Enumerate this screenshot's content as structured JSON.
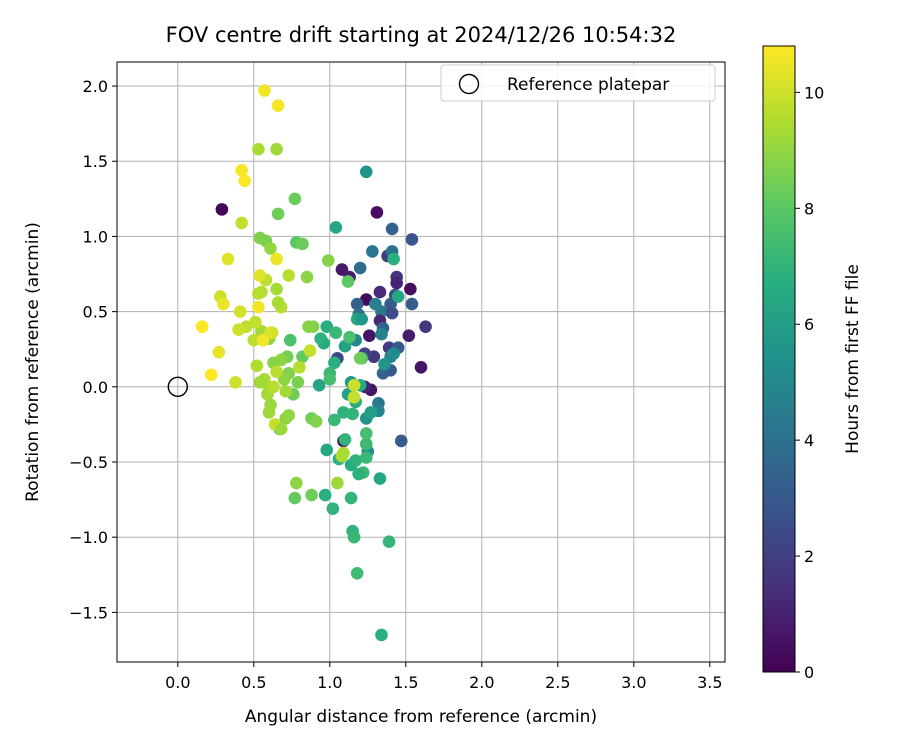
{
  "chart_data": {
    "type": "scatter",
    "title": "FOV centre drift starting at 2024/12/26 10:54:32",
    "xlabel": "Angular distance from reference (arcmin)",
    "ylabel": "Rotation from reference (arcmin)",
    "xlim": [
      -0.4,
      3.6
    ],
    "ylim": [
      -1.83,
      2.16
    ],
    "xticks": [
      0.0,
      0.5,
      1.0,
      1.5,
      2.0,
      2.5,
      3.0,
      3.5
    ],
    "xtick_labels": [
      "0.0",
      "0.5",
      "1.0",
      "1.5",
      "2.0",
      "2.5",
      "3.0",
      "3.5"
    ],
    "yticks": [
      -1.5,
      -1.0,
      -0.5,
      0.0,
      0.5,
      1.0,
      1.5,
      2.0
    ],
    "ytick_labels": [
      "−1.5",
      "−1.0",
      "−0.5",
      "0.0",
      "0.5",
      "1.0",
      "1.5",
      "2.0"
    ],
    "grid": true,
    "legend": {
      "position": "top-right",
      "entries": [
        "Reference platepar"
      ]
    },
    "reference_point": {
      "x": 0.0,
      "y": 0.0,
      "label": "Reference platepar"
    },
    "colorbar": {
      "label": "Hours from first FF file",
      "colormap": "viridis",
      "range": [
        0,
        10.8
      ],
      "ticks": [
        0,
        2,
        4,
        6,
        8,
        10
      ],
      "tick_labels": [
        "0",
        "2",
        "4",
        "6",
        "8",
        "10"
      ]
    },
    "points": [
      [
        0.29,
        1.18,
        0.1
      ],
      [
        1.31,
        1.16,
        0.4
      ],
      [
        1.38,
        0.87,
        1.9
      ],
      [
        1.54,
        0.98,
        2.9
      ],
      [
        1.41,
        1.05,
        3.4
      ],
      [
        1.13,
        0.73,
        0.9
      ],
      [
        1.08,
        0.78,
        0.7
      ],
      [
        1.2,
        0.79,
        3.8
      ],
      [
        1.41,
        0.9,
        4.1
      ],
      [
        1.28,
        0.9,
        4.2
      ],
      [
        1.33,
        0.63,
        1.3
      ],
      [
        1.44,
        0.73,
        1.6
      ],
      [
        1.53,
        0.65,
        0.4
      ],
      [
        1.44,
        0.69,
        1.1
      ],
      [
        1.43,
        0.61,
        2.5
      ],
      [
        1.4,
        0.55,
        3.1
      ],
      [
        1.34,
        0.5,
        4.4
      ],
      [
        1.54,
        0.55,
        3.2
      ],
      [
        1.63,
        0.4,
        1.7
      ],
      [
        1.52,
        0.34,
        0.9
      ],
      [
        1.24,
        0.58,
        0.3
      ],
      [
        1.18,
        0.55,
        3.3
      ],
      [
        1.26,
        0.34,
        0.6
      ],
      [
        1.33,
        0.44,
        1.2
      ],
      [
        1.35,
        0.39,
        3.4
      ],
      [
        1.41,
        0.49,
        2.6
      ],
      [
        1.39,
        0.26,
        1.9
      ],
      [
        1.45,
        0.26,
        3.0
      ],
      [
        1.6,
        0.13,
        0.6
      ],
      [
        1.35,
        0.09,
        3.5
      ],
      [
        1.4,
        0.11,
        3.0
      ],
      [
        1.29,
        0.2,
        1.8
      ],
      [
        1.23,
        0.22,
        2.2
      ],
      [
        1.19,
        0.48,
        4.0
      ],
      [
        1.17,
        0.31,
        5.0
      ],
      [
        1.05,
        0.19,
        2.3
      ],
      [
        1.27,
        -0.02,
        0.6
      ],
      [
        1.23,
        0.0,
        1.0
      ],
      [
        1.47,
        -0.36,
        3.1
      ],
      [
        1.09,
        -0.36,
        0.6
      ],
      [
        1.24,
        1.43,
        5.6
      ],
      [
        1.04,
        1.06,
        6.4
      ],
      [
        1.42,
        0.85,
        6.8
      ],
      [
        1.45,
        0.6,
        6.4
      ],
      [
        1.18,
        0.45,
        6.5
      ],
      [
        1.3,
        0.55,
        4.6
      ],
      [
        1.21,
        0.45,
        5.7
      ],
      [
        1.34,
        0.35,
        4.8
      ],
      [
        1.4,
        0.2,
        4.7
      ],
      [
        1.42,
        0.22,
        5.2
      ],
      [
        1.36,
        0.15,
        5.6
      ],
      [
        1.32,
        -0.11,
        4.3
      ],
      [
        1.32,
        -0.16,
        4.8
      ],
      [
        1.24,
        -0.21,
        5.5
      ],
      [
        1.27,
        -0.17,
        6.0
      ],
      [
        1.25,
        -0.43,
        5.3
      ],
      [
        1.2,
        0.01,
        6.5
      ],
      [
        1.14,
        0.03,
        5.8
      ],
      [
        1.12,
        -0.05,
        6.2
      ],
      [
        1.17,
        -0.1,
        6.7
      ],
      [
        1.09,
        -0.17,
        6.9
      ],
      [
        1.15,
        -0.18,
        7.0
      ],
      [
        1.03,
        -0.22,
        7.2
      ],
      [
        1.1,
        -0.35,
        7.0
      ],
      [
        1.06,
        -0.48,
        6.9
      ],
      [
        1.14,
        -0.52,
        6.7
      ],
      [
        1.17,
        -0.49,
        6.9
      ],
      [
        1.1,
        0.27,
        6.2
      ],
      [
        1.03,
        0.16,
        6.8
      ],
      [
        1.0,
        0.09,
        7.2
      ],
      [
        0.96,
        0.29,
        6.6
      ],
      [
        0.98,
        0.4,
        6.7
      ],
      [
        0.94,
        0.32,
        6.9
      ],
      [
        0.93,
        0.01,
        6.3
      ],
      [
        0.98,
        -0.42,
        6.4
      ],
      [
        1.0,
        0.05,
        7.5
      ],
      [
        1.24,
        -0.38,
        7.3
      ],
      [
        1.24,
        -0.31,
        7.5
      ],
      [
        1.24,
        -0.47,
        7.2
      ],
      [
        1.33,
        -0.61,
        6.4
      ],
      [
        1.22,
        -0.57,
        7.3
      ],
      [
        1.19,
        -0.58,
        6.9
      ],
      [
        1.14,
        -0.74,
        7.1
      ],
      [
        0.97,
        -0.72,
        6.8
      ],
      [
        1.02,
        -0.81,
        7.0
      ],
      [
        1.15,
        -0.96,
        6.9
      ],
      [
        1.16,
        -1.0,
        7.2
      ],
      [
        1.18,
        -1.24,
        7.4
      ],
      [
        1.39,
        -1.03,
        7.1
      ],
      [
        1.34,
        -1.65,
        6.8
      ],
      [
        1.13,
        0.33,
        7.6
      ],
      [
        1.21,
        0.19,
        7.4
      ],
      [
        1.04,
        0.36,
        7.2
      ],
      [
        0.74,
        0.31,
        7.7
      ],
      [
        0.78,
        0.96,
        8.0
      ],
      [
        0.77,
        1.25,
        8.3
      ],
      [
        0.66,
        1.15,
        8.4
      ],
      [
        0.54,
        0.99,
        8.6
      ],
      [
        0.58,
        0.97,
        8.6
      ],
      [
        0.82,
        0.95,
        8.3
      ],
      [
        0.99,
        0.84,
        8.8
      ],
      [
        0.85,
        0.73,
        8.9
      ],
      [
        1.12,
        0.7,
        8.1
      ],
      [
        0.89,
        0.4,
        8.7
      ],
      [
        0.86,
        0.4,
        8.8
      ],
      [
        0.82,
        0.2,
        8.2
      ],
      [
        0.72,
        0.2,
        8.5
      ],
      [
        0.73,
        0.09,
        8.7
      ],
      [
        0.68,
        0.18,
        8.9
      ],
      [
        0.63,
        0.16,
        8.8
      ],
      [
        0.7,
        0.05,
        8.9
      ],
      [
        0.79,
        0.03,
        8.6
      ],
      [
        0.76,
        -0.05,
        8.4
      ],
      [
        0.67,
        -0.28,
        7.9
      ],
      [
        0.71,
        -0.21,
        8.8
      ],
      [
        0.88,
        -0.21,
        8.4
      ],
      [
        0.91,
        -0.23,
        8.7
      ],
      [
        0.78,
        -0.64,
        8.9
      ],
      [
        0.77,
        -0.74,
        8.2
      ],
      [
        0.88,
        -0.72,
        8.4
      ],
      [
        1.2,
        0.19,
        8.4
      ],
      [
        1.08,
        -0.46,
        9.5
      ],
      [
        1.05,
        -0.64,
        9.2
      ],
      [
        1.09,
        -0.44,
        9.4
      ],
      [
        1.16,
        -0.07,
        9.8
      ],
      [
        1.16,
        0.01,
        9.9
      ],
      [
        0.6,
        0.32,
        9.0
      ],
      [
        0.55,
        0.37,
        9.3
      ],
      [
        0.68,
        0.53,
        9.6
      ],
      [
        0.62,
        0.36,
        9.8
      ],
      [
        0.65,
        0.1,
        9.6
      ],
      [
        0.6,
        -0.01,
        9.5
      ],
      [
        0.59,
        -0.05,
        9.3
      ],
      [
        0.61,
        -0.12,
        9.1
      ],
      [
        0.6,
        -0.17,
        9.2
      ],
      [
        0.63,
        0.0,
        9.6
      ],
      [
        0.64,
        -0.25,
        9.9
      ],
      [
        0.68,
        -0.28,
        9.2
      ],
      [
        0.5,
        0.31,
        9.7
      ],
      [
        0.52,
        0.14,
        9.5
      ],
      [
        0.51,
        0.43,
        9.8
      ],
      [
        0.53,
        0.62,
        9.7
      ],
      [
        0.55,
        0.63,
        9.6
      ],
      [
        0.57,
        0.05,
        9.4
      ],
      [
        0.58,
        0.71,
        9.7
      ],
      [
        0.65,
        0.65,
        9.3
      ],
      [
        0.73,
        0.74,
        9.6
      ],
      [
        0.61,
        0.92,
        9.0
      ],
      [
        0.53,
        1.58,
        9.4
      ],
      [
        0.65,
        1.58,
        9.2
      ],
      [
        0.42,
        1.09,
        9.8
      ],
      [
        0.45,
        0.4,
        9.7
      ],
      [
        0.4,
        0.38,
        10.0
      ],
      [
        0.41,
        0.5,
        10.1
      ],
      [
        0.38,
        0.03,
        10.0
      ],
      [
        0.54,
        0.74,
        10.3
      ],
      [
        0.33,
        0.85,
        10.3
      ],
      [
        0.28,
        0.6,
        10.0
      ],
      [
        0.3,
        0.55,
        10.5
      ],
      [
        0.27,
        0.23,
        10.4
      ],
      [
        0.16,
        0.4,
        10.8
      ],
      [
        0.22,
        0.08,
        10.8
      ],
      [
        0.42,
        1.44,
        10.7
      ],
      [
        0.44,
        1.37,
        10.8
      ],
      [
        0.57,
        1.97,
        10.6
      ],
      [
        0.66,
        1.87,
        10.7
      ],
      [
        0.53,
        0.53,
        10.6
      ],
      [
        0.65,
        0.85,
        10.5
      ],
      [
        0.61,
        0.36,
        10.2
      ],
      [
        0.56,
        0.31,
        10.6
      ],
      [
        0.66,
        0.56,
        9.4
      ],
      [
        0.87,
        0.24,
        9.8
      ],
      [
        0.8,
        0.13,
        9.6
      ],
      [
        0.71,
        -0.03,
        9.3
      ],
      [
        0.73,
        -0.19,
        9.0
      ],
      [
        0.54,
        0.03,
        9.2
      ]
    ]
  }
}
